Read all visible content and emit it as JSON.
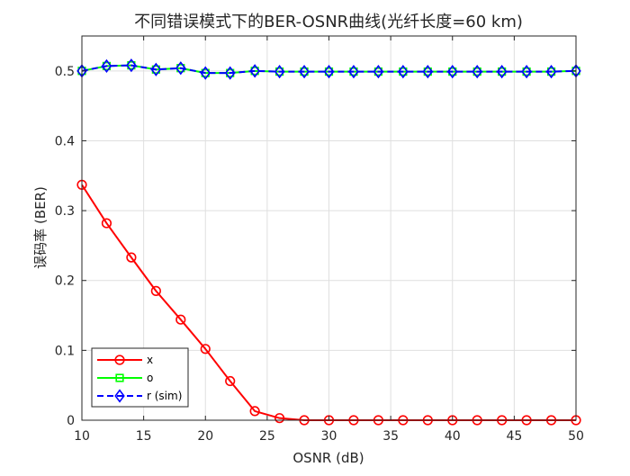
{
  "chart_data": {
    "type": "line",
    "title": "不同错误模式下的BER-OSNR曲线(光纤长度=60 km)",
    "xlabel": "OSNR (dB)",
    "ylabel": "误码率 (BER)",
    "xlim": [
      10,
      50
    ],
    "ylim": [
      0,
      0.55
    ],
    "xticks": [
      "10",
      "15",
      "20",
      "25",
      "30",
      "35",
      "40",
      "45",
      "50"
    ],
    "yticks": [
      "0",
      "0.1",
      "0.2",
      "0.3",
      "0.4",
      "0.5"
    ],
    "grid": true,
    "legend_position": "bottom-left",
    "x": [
      10,
      12,
      14,
      16,
      18,
      20,
      22,
      24,
      26,
      28,
      30,
      32,
      34,
      36,
      38,
      40,
      42,
      44,
      46,
      48,
      50
    ],
    "series": [
      {
        "name": "x",
        "color": "#ff0000",
        "marker": "circle",
        "line_style": "solid",
        "values": [
          0.337,
          0.282,
          0.233,
          0.185,
          0.144,
          0.102,
          0.056,
          0.013,
          0.003,
          0.0,
          0.0,
          0.0,
          0.0,
          0.0,
          0.0,
          0.0,
          0.0,
          0.0,
          0.0,
          0.0,
          0.0
        ]
      },
      {
        "name": "o",
        "color": "#00ff00",
        "marker": "square",
        "line_style": "solid",
        "values": [
          0.5,
          0.507,
          0.508,
          0.502,
          0.504,
          0.497,
          0.497,
          0.5,
          0.499,
          0.499,
          0.499,
          0.499,
          0.499,
          0.499,
          0.499,
          0.499,
          0.499,
          0.499,
          0.499,
          0.499,
          0.5
        ]
      },
      {
        "name": "r (sim)",
        "color": "#0000ff",
        "marker": "diamond",
        "line_style": "dashed",
        "values": [
          0.5,
          0.507,
          0.508,
          0.502,
          0.504,
          0.497,
          0.497,
          0.5,
          0.499,
          0.499,
          0.499,
          0.499,
          0.499,
          0.499,
          0.499,
          0.499,
          0.499,
          0.499,
          0.499,
          0.499,
          0.5
        ]
      }
    ]
  }
}
